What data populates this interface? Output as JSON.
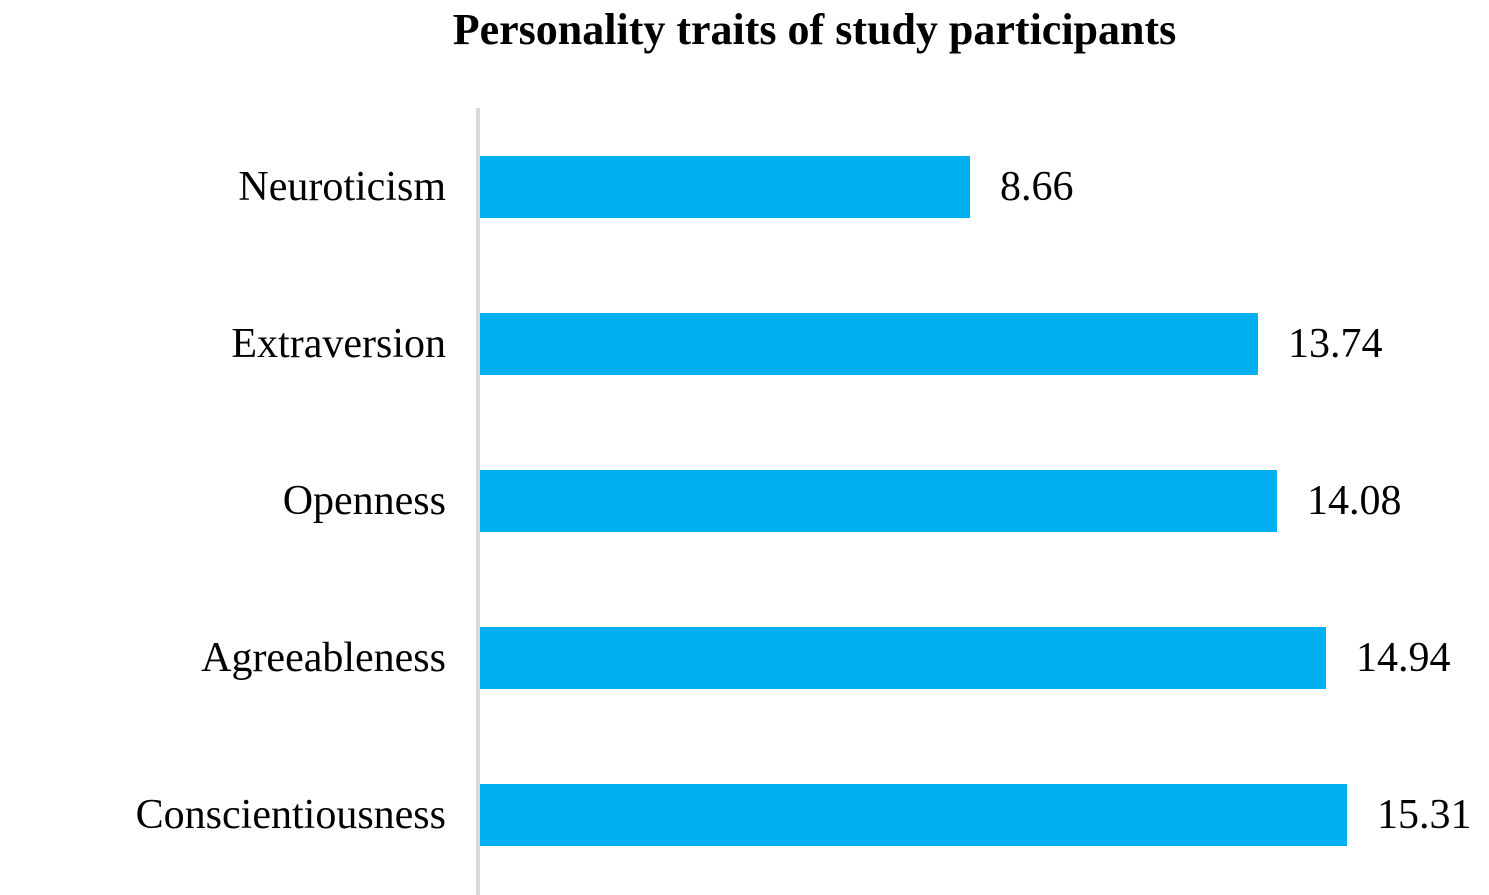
{
  "page": {
    "background": "#ffffff",
    "text_color": "#000000"
  },
  "chart_data": {
    "type": "bar",
    "orientation": "horizontal",
    "title": "Personality traits of study participants",
    "categories": [
      "Neuroticism",
      "Extraversion",
      "Openness",
      "Agreeableness",
      "Conscientiousness"
    ],
    "values": [
      8.66,
      13.74,
      14.08,
      14.94,
      15.31
    ],
    "value_labels": [
      "8.66",
      "13.74",
      "14.08",
      "14.94",
      "15.31"
    ],
    "xlabel": "",
    "ylabel": "",
    "xlim": [
      0,
      17.9
    ],
    "grid": false,
    "legend": false,
    "bar_color": "#00b0f0",
    "axis_line_color": "#d9d9d9"
  }
}
